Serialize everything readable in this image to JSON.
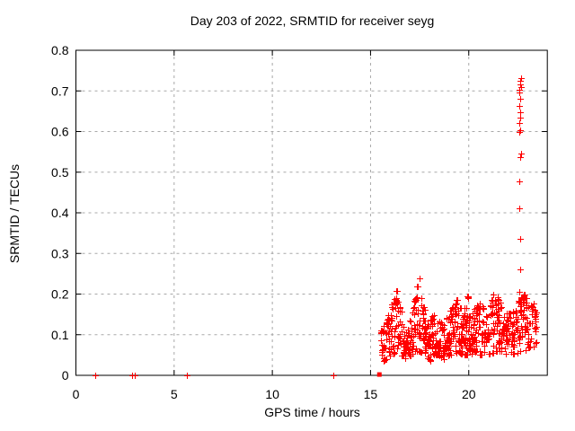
{
  "window": {
    "background": "#ffffff"
  },
  "chart_data": {
    "type": "scatter",
    "title": "Day 203 of 2022, SRMTID for receiver seyg",
    "xlabel": "GPS time / hours",
    "ylabel": "SRMTID / TECUs",
    "xlim": [
      0,
      24
    ],
    "ylim": [
      0,
      0.8
    ],
    "xticks": [
      0,
      5,
      10,
      15,
      20
    ],
    "xtick_labels": [
      "0",
      "5",
      "10",
      "15",
      "20"
    ],
    "yticks": [
      0,
      0.1,
      0.2,
      0.3,
      0.4,
      0.5,
      0.6,
      0.7,
      0.8
    ],
    "ytick_labels": [
      "0",
      "0.1",
      "0.2",
      "0.3",
      "0.4",
      "0.5",
      "0.6",
      "0.7",
      "0.8"
    ],
    "grid": "dashed, both axes, at major ticks",
    "legend": "none",
    "marker": "plus",
    "marker_color": "#ff0000",
    "grid_color": "#a8a8a8",
    "axis_color": "#000000",
    "baseline_points": [
      [
        1.0,
        0.0
      ],
      [
        2.85,
        0.0
      ],
      [
        3.0,
        0.0
      ],
      [
        5.65,
        0.0
      ],
      [
        13.1,
        0.0
      ]
    ],
    "square_point": [
      15.45,
      0.002
    ],
    "spike": {
      "x": 22.6,
      "x_jitter": 0.1,
      "values": [
        0.732,
        0.725,
        0.717,
        0.71,
        0.703,
        0.697,
        0.68,
        0.663,
        0.648,
        0.635,
        0.62,
        0.603,
        0.598,
        0.545,
        0.538,
        0.478,
        0.41,
        0.335,
        0.26,
        0.205
      ]
    },
    "dense_cluster": {
      "x_start": 15.55,
      "x_end": 23.45,
      "seed": 20220203,
      "column_step": 0.045,
      "points_per_column": [
        3,
        7
      ],
      "envelope": [
        [
          15.55,
          0.03,
          0.11
        ],
        [
          15.8,
          0.04,
          0.14
        ],
        [
          16.05,
          0.05,
          0.17
        ],
        [
          16.3,
          0.06,
          0.21
        ],
        [
          16.55,
          0.05,
          0.16
        ],
        [
          16.8,
          0.04,
          0.12
        ],
        [
          17.05,
          0.05,
          0.14
        ],
        [
          17.3,
          0.06,
          0.2
        ],
        [
          17.5,
          0.06,
          0.245
        ],
        [
          17.7,
          0.05,
          0.17
        ],
        [
          17.95,
          0.03,
          0.12
        ],
        [
          18.2,
          0.05,
          0.17
        ],
        [
          18.45,
          0.05,
          0.15
        ],
        [
          18.7,
          0.04,
          0.12
        ],
        [
          18.95,
          0.05,
          0.15
        ],
        [
          19.2,
          0.05,
          0.17
        ],
        [
          19.45,
          0.06,
          0.19
        ],
        [
          19.7,
          0.05,
          0.16
        ],
        [
          19.9,
          0.05,
          0.21
        ],
        [
          20.1,
          0.05,
          0.14
        ],
        [
          20.35,
          0.06,
          0.17
        ],
        [
          20.6,
          0.05,
          0.18
        ],
        [
          20.85,
          0.06,
          0.15
        ],
        [
          21.1,
          0.05,
          0.17
        ],
        [
          21.35,
          0.06,
          0.21
        ],
        [
          21.6,
          0.06,
          0.18
        ],
        [
          21.85,
          0.05,
          0.16
        ],
        [
          22.1,
          0.06,
          0.15
        ],
        [
          22.35,
          0.05,
          0.17
        ],
        [
          22.6,
          0.06,
          0.19
        ],
        [
          22.85,
          0.06,
          0.2
        ],
        [
          23.1,
          0.07,
          0.17
        ],
        [
          23.3,
          0.07,
          0.19
        ],
        [
          23.45,
          0.08,
          0.16
        ]
      ]
    }
  }
}
